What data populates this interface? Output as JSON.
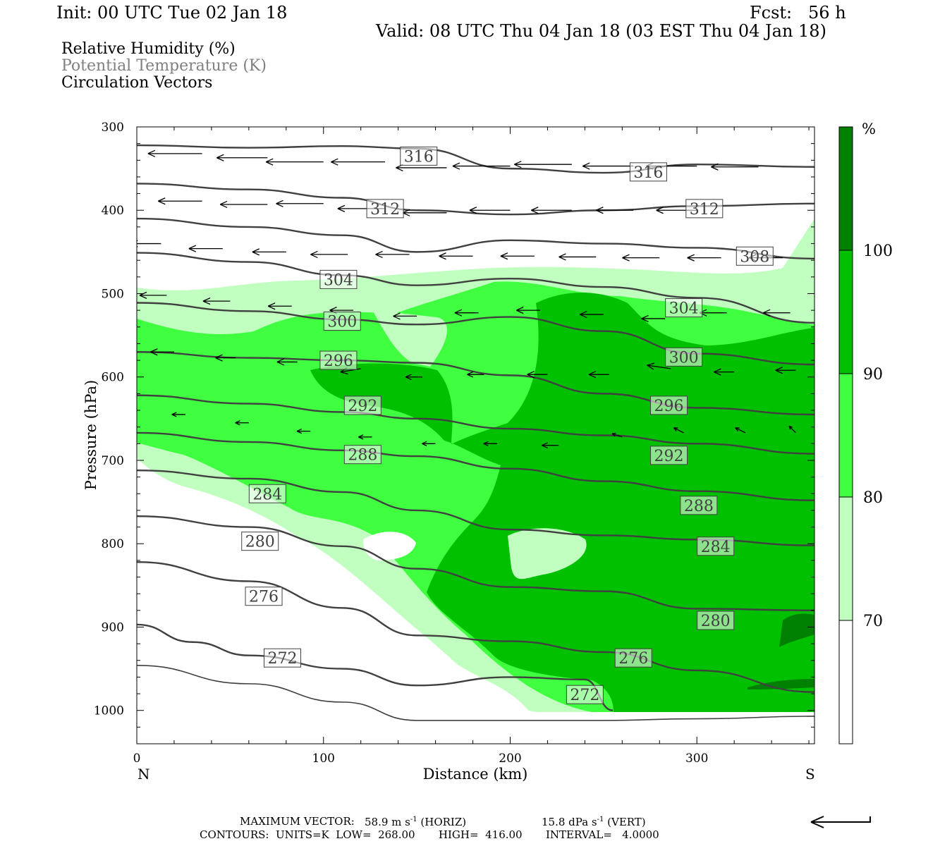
{
  "header": {
    "init": "Init: 00 UTC Tue 02 Jan 18",
    "fcst": "Fcst:   56 h",
    "valid": "Valid: 08 UTC Thu 04 Jan 18 (03 EST Thu 04 Jan 18)"
  },
  "legend_lines": [
    "Relative Humidity (%)",
    "Potential Temperature (K)",
    "Circulation Vectors"
  ],
  "chart_data": {
    "type": "heatmap",
    "title": "",
    "xlabel": "Distance (km)",
    "ylabel": "Pressure (hPa)",
    "xlim": [
      0,
      363
    ],
    "ylim": [
      300,
      1040
    ],
    "y_inverted": true,
    "x_ticks": [
      "0",
      "100",
      "200",
      "300"
    ],
    "x_tick_values": [
      0,
      100,
      200,
      300
    ],
    "y_ticks": [
      "300",
      "400",
      "500",
      "600",
      "700",
      "800",
      "900",
      "1000"
    ],
    "y_tick_values": [
      300,
      400,
      500,
      600,
      700,
      800,
      900,
      1000
    ],
    "x_end_labels": {
      "left": "N",
      "right": "S"
    },
    "colorbar": {
      "unit": "%",
      "labels": [
        "70",
        "80",
        "90",
        "100"
      ],
      "levels": [
        70,
        80,
        90,
        100
      ],
      "colors": [
        "#ffffff",
        "#c0ffc0",
        "#40ff40",
        "#00c000",
        "#008000"
      ]
    },
    "theta_contours": [
      {
        "label": "316",
        "points": [
          [
            0,
            322
          ],
          [
            60,
            325
          ],
          [
            110,
            323
          ],
          [
            150,
            326
          ],
          [
            200,
            350
          ],
          [
            250,
            355
          ],
          [
            300,
            345
          ],
          [
            363,
            348
          ]
        ]
      },
      {
        "label": "312",
        "points": [
          [
            0,
            368
          ],
          [
            60,
            375
          ],
          [
            110,
            385
          ],
          [
            150,
            400
          ],
          [
            200,
            405
          ],
          [
            250,
            400
          ],
          [
            300,
            395
          ],
          [
            363,
            392
          ]
        ]
      },
      {
        "label": "308",
        "points": [
          [
            0,
            410
          ],
          [
            60,
            420
          ],
          [
            110,
            430
          ],
          [
            150,
            450
          ],
          [
            200,
            436
          ],
          [
            250,
            440
          ],
          [
            300,
            445
          ],
          [
            363,
            458
          ]
        ]
      },
      {
        "label": "304",
        "points": [
          [
            0,
            451
          ],
          [
            60,
            462
          ],
          [
            110,
            478
          ],
          [
            150,
            490
          ],
          [
            200,
            482
          ],
          [
            250,
            492
          ],
          [
            300,
            505
          ],
          [
            363,
            535
          ]
        ]
      },
      {
        "label": "300",
        "points": [
          [
            0,
            511
          ],
          [
            60,
            521
          ],
          [
            110,
            531
          ],
          [
            150,
            537
          ],
          [
            200,
            528
          ],
          [
            250,
            545
          ],
          [
            300,
            572
          ],
          [
            363,
            585
          ]
        ]
      },
      {
        "label": "296",
        "points": [
          [
            0,
            570
          ],
          [
            60,
            577
          ],
          [
            110,
            580
          ],
          [
            150,
            583
          ],
          [
            200,
            598
          ],
          [
            250,
            620
          ],
          [
            300,
            637
          ],
          [
            363,
            645
          ]
        ]
      },
      {
        "label": "292",
        "points": [
          [
            0,
            622
          ],
          [
            60,
            632
          ],
          [
            110,
            642
          ],
          [
            150,
            650
          ],
          [
            200,
            662
          ],
          [
            250,
            670
          ],
          [
            300,
            680
          ],
          [
            363,
            692
          ]
        ]
      },
      {
        "label": "288",
        "points": [
          [
            0,
            667
          ],
          [
            60,
            678
          ],
          [
            110,
            688
          ],
          [
            150,
            695
          ],
          [
            200,
            710
          ],
          [
            250,
            725
          ],
          [
            300,
            737
          ],
          [
            363,
            748
          ]
        ]
      },
      {
        "label": "284",
        "points": [
          [
            0,
            712
          ],
          [
            60,
            722
          ],
          [
            110,
            738
          ],
          [
            150,
            760
          ],
          [
            200,
            783
          ],
          [
            250,
            790
          ],
          [
            300,
            795
          ],
          [
            363,
            802
          ]
        ]
      },
      {
        "label": "280",
        "points": [
          [
            0,
            767
          ],
          [
            60,
            780
          ],
          [
            110,
            803
          ],
          [
            150,
            830
          ],
          [
            200,
            852
          ],
          [
            250,
            857
          ],
          [
            300,
            878
          ],
          [
            363,
            880
          ]
        ]
      },
      {
        "label": "276",
        "points": [
          [
            0,
            822
          ],
          [
            60,
            845
          ],
          [
            110,
            877
          ],
          [
            150,
            910
          ],
          [
            200,
            917
          ],
          [
            250,
            930
          ],
          [
            300,
            952
          ],
          [
            363,
            978
          ]
        ]
      },
      {
        "label": "272",
        "points": [
          [
            0,
            897
          ],
          [
            30,
            918
          ],
          [
            60,
            934
          ],
          [
            110,
            950
          ],
          [
            150,
            970
          ],
          [
            200,
            960
          ],
          [
            240,
            963
          ],
          [
            255,
            1000
          ]
        ]
      },
      {
        "label": "",
        "points": [
          [
            0,
            946
          ],
          [
            60,
            968
          ],
          [
            110,
            990
          ],
          [
            150,
            1012
          ],
          [
            200,
            1012
          ],
          [
            250,
            1012
          ],
          [
            300,
            1010
          ],
          [
            363,
            1007
          ]
        ]
      }
    ],
    "theta_labels": [
      {
        "text": "316",
        "x": 151,
        "p": 335
      },
      {
        "text": "316",
        "x": 274,
        "p": 354
      },
      {
        "text": "312",
        "x": 133,
        "p": 398
      },
      {
        "text": "312",
        "x": 304,
        "p": 398
      },
      {
        "text": "308",
        "x": 331,
        "p": 455
      },
      {
        "text": "304",
        "x": 108,
        "p": 483
      },
      {
        "text": "304",
        "x": 293,
        "p": 517
      },
      {
        "text": "300",
        "x": 110,
        "p": 533
      },
      {
        "text": "300",
        "x": 293,
        "p": 576
      },
      {
        "text": "296",
        "x": 108,
        "p": 580
      },
      {
        "text": "296",
        "x": 285,
        "p": 634
      },
      {
        "text": "292",
        "x": 121,
        "p": 634
      },
      {
        "text": "292",
        "x": 285,
        "p": 694
      },
      {
        "text": "288",
        "x": 121,
        "p": 693
      },
      {
        "text": "288",
        "x": 301,
        "p": 754
      },
      {
        "text": "284",
        "x": 70,
        "p": 740
      },
      {
        "text": "284",
        "x": 310,
        "p": 803
      },
      {
        "text": "280",
        "x": 66,
        "p": 797
      },
      {
        "text": "280",
        "x": 310,
        "p": 892
      },
      {
        "text": "276",
        "x": 68,
        "p": 863
      },
      {
        "text": "276",
        "x": 266,
        "p": 937
      },
      {
        "text": "272",
        "x": 78,
        "p": 937
      },
      {
        "text": "272",
        "x": 240,
        "p": 981
      }
    ],
    "vectors": [
      {
        "x": 35,
        "p": 332,
        "u": -32,
        "w": 0
      },
      {
        "x": 70,
        "p": 337,
        "u": -30,
        "w": 0
      },
      {
        "x": 100,
        "p": 342,
        "u": -34,
        "w": 0
      },
      {
        "x": 133,
        "p": 342,
        "u": -32,
        "w": 0
      },
      {
        "x": 166,
        "p": 349,
        "u": -30,
        "w": 0
      },
      {
        "x": 200,
        "p": 347,
        "u": -34,
        "w": 0
      },
      {
        "x": 233,
        "p": 345,
        "u": -34,
        "w": 0
      },
      {
        "x": 266,
        "p": 347,
        "u": -30,
        "w": 0
      },
      {
        "x": 300,
        "p": 347,
        "u": -30,
        "w": 0
      },
      {
        "x": 333,
        "p": 348,
        "u": -28,
        "w": 0
      },
      {
        "x": 0,
        "p": 380,
        "u": -26,
        "w": 0
      },
      {
        "x": 35,
        "p": 389,
        "u": -26,
        "w": 0
      },
      {
        "x": 70,
        "p": 393,
        "u": -28,
        "w": 0
      },
      {
        "x": 100,
        "p": 392,
        "u": -28,
        "w": 0
      },
      {
        "x": 133,
        "p": 398,
        "u": -28,
        "w": 0
      },
      {
        "x": 166,
        "p": 403,
        "u": -26,
        "w": 0
      },
      {
        "x": 200,
        "p": 400,
        "u": -24,
        "w": 0
      },
      {
        "x": 233,
        "p": 400,
        "u": -24,
        "w": 0
      },
      {
        "x": 266,
        "p": 400,
        "u": -22,
        "w": 0
      },
      {
        "x": 300,
        "p": 400,
        "u": -24,
        "w": 0
      },
      {
        "x": 13,
        "p": 440,
        "u": -18,
        "w": 0
      },
      {
        "x": 46,
        "p": 446,
        "u": -20,
        "w": 0
      },
      {
        "x": 80,
        "p": 450,
        "u": -20,
        "w": 0
      },
      {
        "x": 113,
        "p": 453,
        "u": -22,
        "w": 0
      },
      {
        "x": 146,
        "p": 453,
        "u": -20,
        "w": 0
      },
      {
        "x": 180,
        "p": 455,
        "u": -20,
        "w": 0
      },
      {
        "x": 213,
        "p": 455,
        "u": -20,
        "w": 0
      },
      {
        "x": 246,
        "p": 456,
        "u": -22,
        "w": 0
      },
      {
        "x": 280,
        "p": 457,
        "u": -22,
        "w": 0
      },
      {
        "x": 313,
        "p": 457,
        "u": -20,
        "w": 0
      },
      {
        "x": 346,
        "p": 457,
        "u": -20,
        "w": 0
      },
      {
        "x": 16,
        "p": 502,
        "u": -16,
        "w": 0
      },
      {
        "x": 50,
        "p": 509,
        "u": -16,
        "w": 0
      },
      {
        "x": 83,
        "p": 515,
        "u": -14,
        "w": 0
      },
      {
        "x": 116,
        "p": 520,
        "u": -14,
        "w": 0
      },
      {
        "x": 150,
        "p": 527,
        "u": -14,
        "w": 0
      },
      {
        "x": 183,
        "p": 523,
        "u": -14,
        "w": 0
      },
      {
        "x": 216,
        "p": 520,
        "u": -14,
        "w": 0
      },
      {
        "x": 250,
        "p": 525,
        "u": -14,
        "w": 0
      },
      {
        "x": 283,
        "p": 530,
        "u": -14,
        "w": 0
      },
      {
        "x": 316,
        "p": 523,
        "u": -16,
        "w": 0
      },
      {
        "x": 350,
        "p": 523,
        "u": -16,
        "w": 0
      },
      {
        "x": 20,
        "p": 570,
        "u": -14,
        "w": 0
      },
      {
        "x": 53,
        "p": 577,
        "u": -12,
        "w": 0
      },
      {
        "x": 86,
        "p": 582,
        "u": -12,
        "w": 0
      },
      {
        "x": 120,
        "p": 590,
        "u": -12,
        "w": -2
      },
      {
        "x": 153,
        "p": 600,
        "u": -10,
        "w": 0
      },
      {
        "x": 186,
        "p": 597,
        "u": -10,
        "w": 0
      },
      {
        "x": 220,
        "p": 597,
        "u": -12,
        "w": 0
      },
      {
        "x": 253,
        "p": 597,
        "u": -12,
        "w": 0
      },
      {
        "x": 286,
        "p": 590,
        "u": -14,
        "w": 2
      },
      {
        "x": 320,
        "p": 594,
        "u": -12,
        "w": 0
      },
      {
        "x": 353,
        "p": 592,
        "u": -12,
        "w": 0
      },
      {
        "x": 26,
        "p": 645,
        "u": -8,
        "w": 0
      },
      {
        "x": 60,
        "p": 655,
        "u": -8,
        "w": 0
      },
      {
        "x": 93,
        "p": 665,
        "u": -8,
        "w": 0
      },
      {
        "x": 126,
        "p": 672,
        "u": -8,
        "w": 0
      },
      {
        "x": 160,
        "p": 680,
        "u": -8,
        "w": 0
      },
      {
        "x": 193,
        "p": 680,
        "u": -8,
        "w": 0
      },
      {
        "x": 226,
        "p": 682,
        "u": -10,
        "w": 0
      },
      {
        "x": 260,
        "p": 672,
        "u": -6,
        "w": 2
      },
      {
        "x": 293,
        "p": 667,
        "u": -6,
        "w": 3
      },
      {
        "x": 326,
        "p": 667,
        "u": -6,
        "w": 3
      },
      {
        "x": 353,
        "p": 667,
        "u": -4,
        "w": 4
      }
    ],
    "max_vector": {
      "horiz": "58.9 m s⁻¹ (HORIZ)",
      "vert": "15.8 dPa s⁻¹ (VERT)"
    }
  },
  "footer": {
    "max_vector_label": "MAXIMUM VECTOR:",
    "max_vector_horiz": "58.9 m s",
    "horiz_exp": "-1",
    "horiz_suffix": "(HORIZ)",
    "max_vector_vert": "15.8 dPa s",
    "vert_exp": "-1",
    "vert_suffix": "(VERT)",
    "contours": "CONTOURS:  UNITS=K  LOW=  268.00       HIGH=  416.00       INTERVAL=   4.0000"
  }
}
